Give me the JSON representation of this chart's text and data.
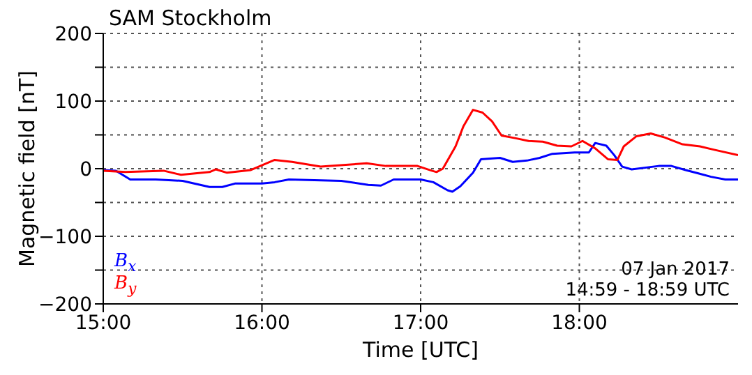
{
  "chart_data": {
    "type": "line",
    "title": "SAM Stockholm",
    "xlabel": "Time [UTC]",
    "ylabel": "Magnetic field [nT]",
    "xlim": [
      15,
      19
    ],
    "xticks": [
      {
        "value": 15,
        "label": "15:00"
      },
      {
        "value": 16,
        "label": "16:00"
      },
      {
        "value": 17,
        "label": "17:00"
      },
      {
        "value": 18,
        "label": "18:00"
      }
    ],
    "ylim": [
      -200,
      200
    ],
    "yticks": [
      -200,
      {
        "value": -150,
        "label": null
      },
      -100,
      {
        "value": -50,
        "label": null
      },
      0,
      {
        "value": 50,
        "label": null
      },
      100,
      {
        "value": 150,
        "label": null
      },
      200
    ],
    "grid": true,
    "legend": "bottom left",
    "marker": "none",
    "line_style": "solid",
    "annotations": [
      "07 Jan 2017",
      "14:59 - 18:59 UTC"
    ],
    "series": [
      {
        "name": "B$_{x}$",
        "color": "#0000ff",
        "x": [
          15,
          15.08,
          15.17,
          15.33,
          15.5,
          15.67,
          15.75,
          15.83,
          16,
          16.08,
          16.17,
          16.33,
          16.5,
          16.67,
          16.75,
          16.83,
          17,
          17.08,
          17.17,
          17.2,
          17.25,
          17.33,
          17.38,
          17.5,
          17.58,
          17.67,
          17.75,
          17.83,
          17.97,
          18.06,
          18.1,
          18.17,
          18.22,
          18.27,
          18.33,
          18.5,
          18.58,
          18.67,
          18.75,
          18.83,
          18.92,
          19
        ],
        "values": [
          -2,
          -3,
          -16,
          -16,
          -18,
          -27,
          -27,
          -22,
          -22,
          -20,
          -16,
          -17,
          -18,
          -24,
          -25,
          -16,
          -16,
          -20,
          -32,
          -34,
          -26,
          -6,
          14,
          16,
          10,
          12,
          16,
          22,
          24,
          24,
          38,
          34,
          20,
          3,
          -1,
          4,
          4,
          -2,
          -7,
          -12,
          -16,
          -16
        ]
      },
      {
        "name": "B$_{y}$",
        "color": "#ff0000",
        "x": [
          15,
          15.14,
          15.38,
          15.49,
          15.67,
          15.71,
          15.78,
          15.93,
          16.08,
          16.19,
          16.37,
          16.66,
          16.78,
          16.98,
          17.07,
          17.1,
          17.14,
          17.22,
          17.27,
          17.33,
          17.39,
          17.45,
          17.51,
          17.6,
          17.68,
          17.77,
          17.86,
          17.95,
          18.02,
          18.1,
          18.18,
          18.24,
          18.28,
          18.36,
          18.45,
          18.54,
          18.65,
          18.76,
          18.85,
          19
        ],
        "values": [
          -3,
          -5,
          -3,
          -9,
          -5,
          -1,
          -6,
          -2,
          13,
          10,
          3,
          8,
          4,
          4,
          -3,
          -5,
          0,
          33,
          63,
          87,
          83,
          70,
          49,
          45,
          41,
          40,
          34,
          33,
          41,
          30,
          14,
          13,
          33,
          48,
          52,
          46,
          36,
          33,
          28,
          20
        ]
      }
    ]
  }
}
